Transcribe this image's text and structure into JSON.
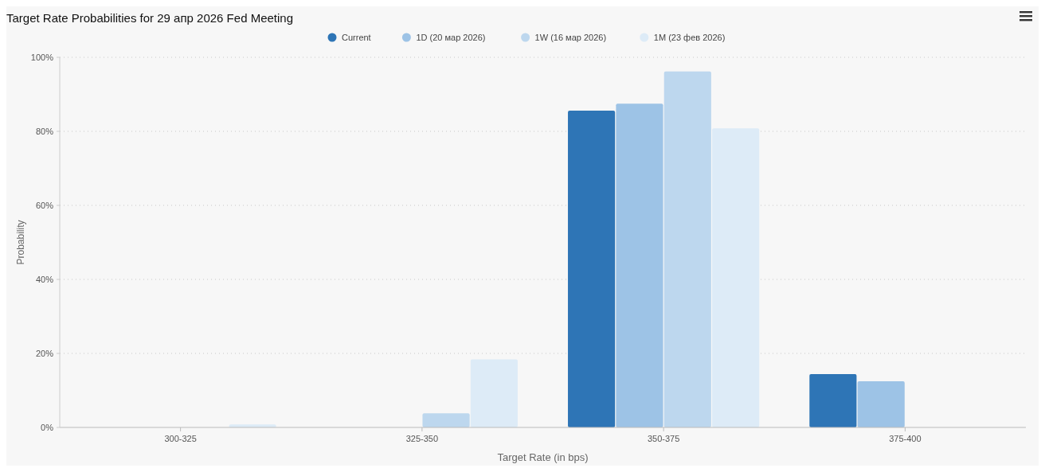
{
  "chart_data": {
    "type": "bar",
    "title": "Target Rate Probabilities for 29 апр 2026 Fed Meeting",
    "xlabel": "Target Rate (in bps)",
    "ylabel": "Probability",
    "categories": [
      "300-325",
      "325-350",
      "350-375",
      "375-400"
    ],
    "series": [
      {
        "name": "Current",
        "color": "#2e75b6",
        "values": [
          0,
          0,
          85.6,
          14.4
        ]
      },
      {
        "name": "1D (20 мар 2026)",
        "color": "#9dc3e6",
        "values": [
          0,
          0,
          87.5,
          12.5
        ]
      },
      {
        "name": "1W (16 мар 2026)",
        "color": "#bdd7ee",
        "values": [
          0,
          3.8,
          96.2,
          0
        ]
      },
      {
        "name": "1M (23 фев 2026)",
        "color": "#ddebf7",
        "values": [
          0.8,
          18.4,
          80.8,
          0
        ]
      }
    ],
    "ylim": [
      0,
      100
    ],
    "yticks": [
      {
        "value": 0,
        "label": "0%"
      },
      {
        "value": 20,
        "label": "20%"
      },
      {
        "value": 40,
        "label": "40%"
      },
      {
        "value": 60,
        "label": "60%"
      },
      {
        "value": 80,
        "label": "80%"
      },
      {
        "value": 100,
        "label": "100%"
      }
    ],
    "grid": "y",
    "legend": "top"
  }
}
